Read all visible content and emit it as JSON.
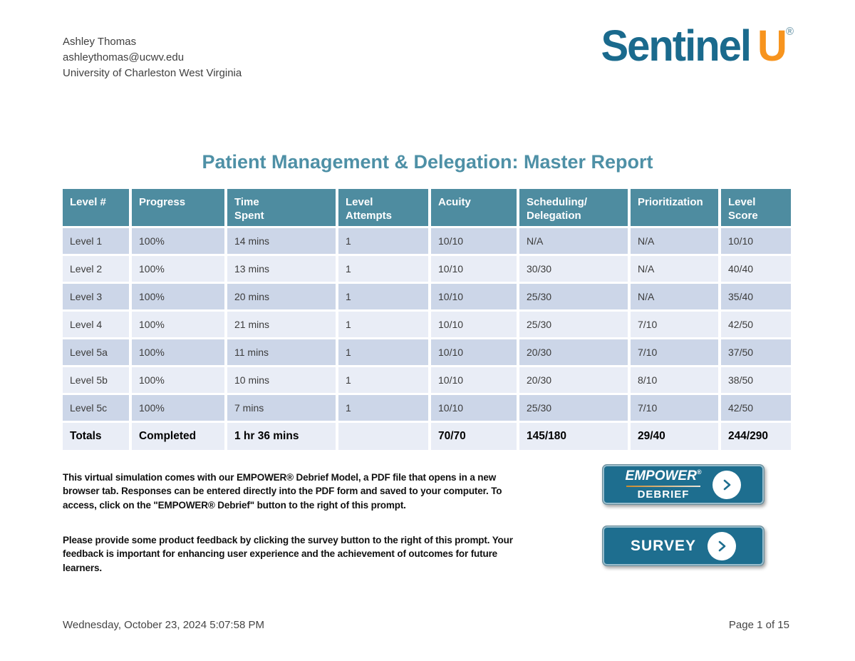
{
  "header": {
    "user": {
      "name": "Ashley Thomas",
      "email": "ashleythomas@ucwv.edu",
      "institution": "University of Charleston West Virginia"
    },
    "logo": {
      "word": "Sentinel",
      "letter": "U",
      "reg": "®",
      "word_color": "#1a6a8d",
      "letter_color": "#f7941e"
    }
  },
  "report": {
    "title": "Patient Management & Delegation: Master Report",
    "title_color": "#4e90a6"
  },
  "table": {
    "header_color": "#4e8ca0",
    "row_dark_color": "#ccd6e8",
    "row_light_color": "#e9edf6",
    "headers": [
      "Level #",
      "Progress",
      "Time\nSpent",
      "Level\nAttempts",
      "Acuity",
      "Scheduling/\nDelegation",
      "Prioritization",
      "Level\nScore"
    ],
    "rows": [
      [
        "Level 1",
        "100%",
        "14 mins",
        "1",
        "10/10",
        "N/A",
        "N/A",
        "10/10"
      ],
      [
        "Level 2",
        "100%",
        "13 mins",
        "1",
        "10/10",
        "30/30",
        "N/A",
        "40/40"
      ],
      [
        "Level 3",
        "100%",
        "20 mins",
        "1",
        "10/10",
        "25/30",
        "N/A",
        "35/40"
      ],
      [
        "Level 4",
        "100%",
        "21 mins",
        "1",
        "10/10",
        "25/30",
        "7/10",
        "42/50"
      ],
      [
        "Level 5a",
        "100%",
        "11 mins",
        "1",
        "10/10",
        "20/30",
        "7/10",
        "37/50"
      ],
      [
        "Level 5b",
        "100%",
        "10 mins",
        "1",
        "10/10",
        "20/30",
        "8/10",
        "38/50"
      ],
      [
        "Level 5c",
        "100%",
        "7 mins",
        "1",
        "10/10",
        "25/30",
        "7/10",
        "42/50"
      ]
    ],
    "totals": [
      "Totals",
      "Completed",
      "1 hr 36 mins",
      "",
      "70/70",
      "145/180",
      "29/40",
      "244/290"
    ]
  },
  "notes": {
    "debrief": "This virtual simulation comes with our EMPOWER® Debrief Model, a PDF file that opens in a new browser tab. Responses can be entered directly into the PDF form and saved to your computer. To access, click on the \"EMPOWER® Debrief\" button to the right of this prompt.",
    "survey": "Please provide some product feedback by clicking the survey button to the right of this prompt. Your feedback is important for enhancing user experience and the achievement of outcomes for future learners."
  },
  "buttons": {
    "empower": {
      "brand": "EMPOWER",
      "reg": "®",
      "line2": "DEBRIEF"
    },
    "survey": {
      "label": "SURVEY"
    },
    "color": "#1e6e8f"
  },
  "footer": {
    "timestamp": "Wednesday, October 23, 2024 5:07:58 PM",
    "page": "Page 1 of 15"
  }
}
